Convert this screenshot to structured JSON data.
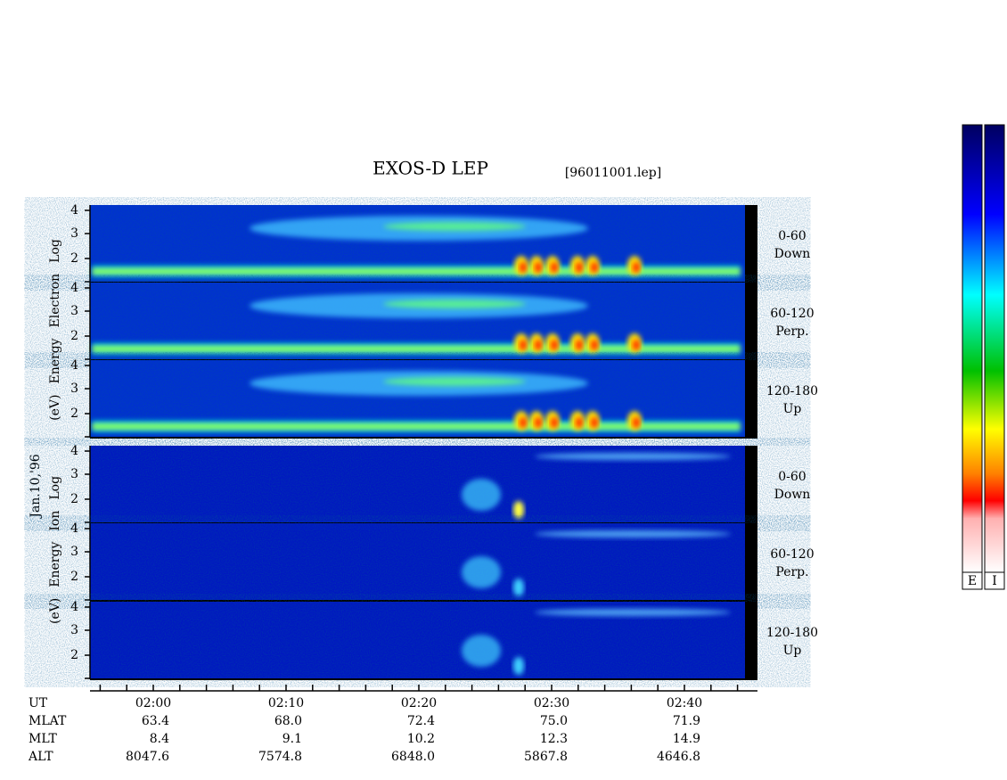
{
  "title": "EXOS-D LEP",
  "file": "[96011001.lep]",
  "date": "Jan.10,'96",
  "electron_label": [
    "Log",
    "Electron",
    "Energy",
    "(eV)"
  ],
  "ion_label": [
    "Log",
    "Ion",
    "Energy",
    "(eV)"
  ],
  "energy_ticks": [
    "4",
    "3",
    "2"
  ],
  "pitch_panels": [
    {
      "angle": "0-60",
      "direction": "Down"
    },
    {
      "angle": "60-120",
      "direction": "Perp."
    },
    {
      "angle": "120-180",
      "direction": "Up"
    }
  ],
  "time_axis": {
    "name": "UT",
    "ticks": [
      "02:00",
      "02:10",
      "02:20",
      "02:30",
      "02:40"
    ],
    "rows": [
      {
        "name": "MLAT",
        "values": [
          "63.4",
          "68.0",
          "72.4",
          "75.0",
          "71.9"
        ]
      },
      {
        "name": "MLT",
        "values": [
          "8.4",
          "9.1",
          "10.2",
          "12.3",
          "14.9"
        ]
      },
      {
        "name": "ALT",
        "values": [
          "8047.6",
          "7574.8",
          "6848.0",
          "5867.8",
          "4646.8"
        ]
      }
    ]
  },
  "color_bars": [
    "E",
    "I"
  ]
}
